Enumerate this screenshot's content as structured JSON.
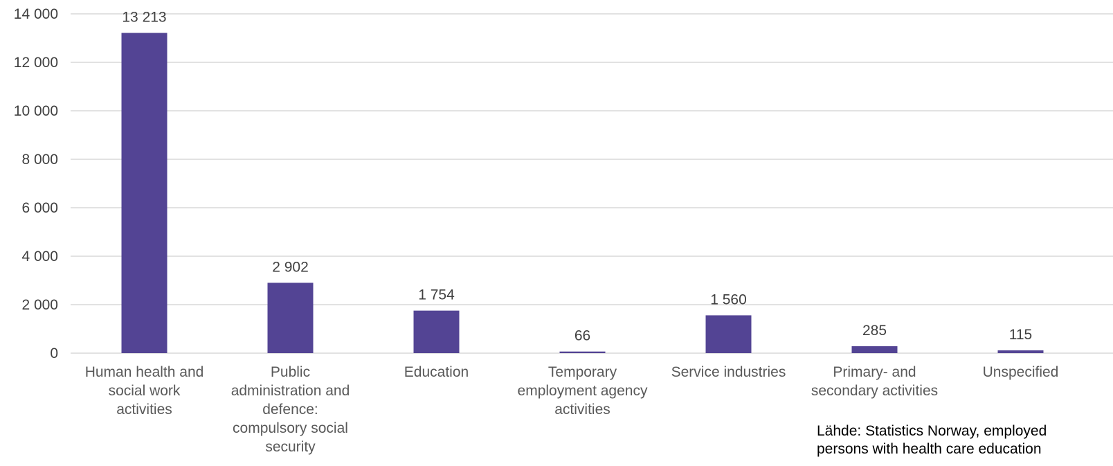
{
  "chart_data": {
    "type": "bar",
    "categories": [
      "Human health and social work activities",
      "Public administration and defence: compulsory social security",
      "Education",
      "Temporary employment agency activities",
      "Service industries",
      "Primary- and secondary activities",
      "Unspecified"
    ],
    "category_lines": [
      [
        "Human health and",
        "social work",
        "activities"
      ],
      [
        "Public",
        "administration and",
        "defence:",
        "compulsory social",
        "security"
      ],
      [
        "Education"
      ],
      [
        "Temporary",
        "employment agency",
        "activities"
      ],
      [
        "Service industries"
      ],
      [
        "Primary- and",
        "secondary activities"
      ],
      [
        "Unspecified"
      ]
    ],
    "values": [
      13213,
      2902,
      1754,
      66,
      1560,
      285,
      115
    ],
    "value_labels": [
      "13 213",
      "2 902",
      "1 754",
      "66",
      "1 560",
      "285",
      "115"
    ],
    "ylim": [
      0,
      14000
    ],
    "yticks": [
      0,
      2000,
      4000,
      6000,
      8000,
      10000,
      12000,
      14000
    ],
    "ytick_labels": [
      "0",
      "2 000",
      "4 000",
      "6 000",
      "8 000",
      "10 000",
      "12 000",
      "14 000"
    ],
    "grid": true,
    "legend": "none",
    "colors": {
      "bar": "#534494",
      "grid": "#d9d9d9",
      "text": "#404040"
    }
  },
  "source_note": "Lähde: Statistics Norway, employed\npersons with health care education"
}
